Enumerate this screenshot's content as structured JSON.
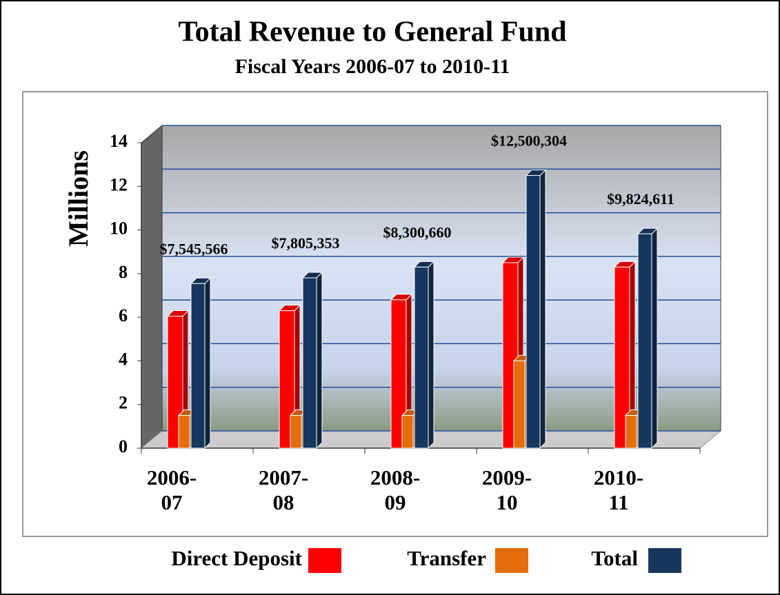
{
  "chart_data": {
    "type": "bar",
    "title": "Total Revenue to General Fund",
    "subtitle": "Fiscal Years 2006-07 to 2010-11",
    "y_label": "Millions",
    "categories": [
      "2006-07",
      "2007-08",
      "2008-09",
      "2009-10",
      "2010-11"
    ],
    "series": [
      {
        "name": "Direct Deposit",
        "color": "#ff0000",
        "values": [
          6.05,
          6.3,
          6.8,
          8.5,
          8.3
        ]
      },
      {
        "name": "Transfer",
        "color": "#e46c0a",
        "values": [
          1.5,
          1.5,
          1.5,
          4.0,
          1.5
        ]
      },
      {
        "name": "Total",
        "color": "#17375e",
        "values": [
          7.545566,
          7.805353,
          8.30066,
          12.500304,
          9.824611
        ],
        "value_labels": [
          "$7,545,566",
          "$7,805,353",
          "$8,300,660",
          "$12,500,304",
          "$9,824,611"
        ]
      }
    ],
    "ylim": [
      0,
      14
    ],
    "yticks": [
      0,
      2,
      4,
      6,
      8,
      10,
      12,
      14
    ],
    "grid": true
  }
}
